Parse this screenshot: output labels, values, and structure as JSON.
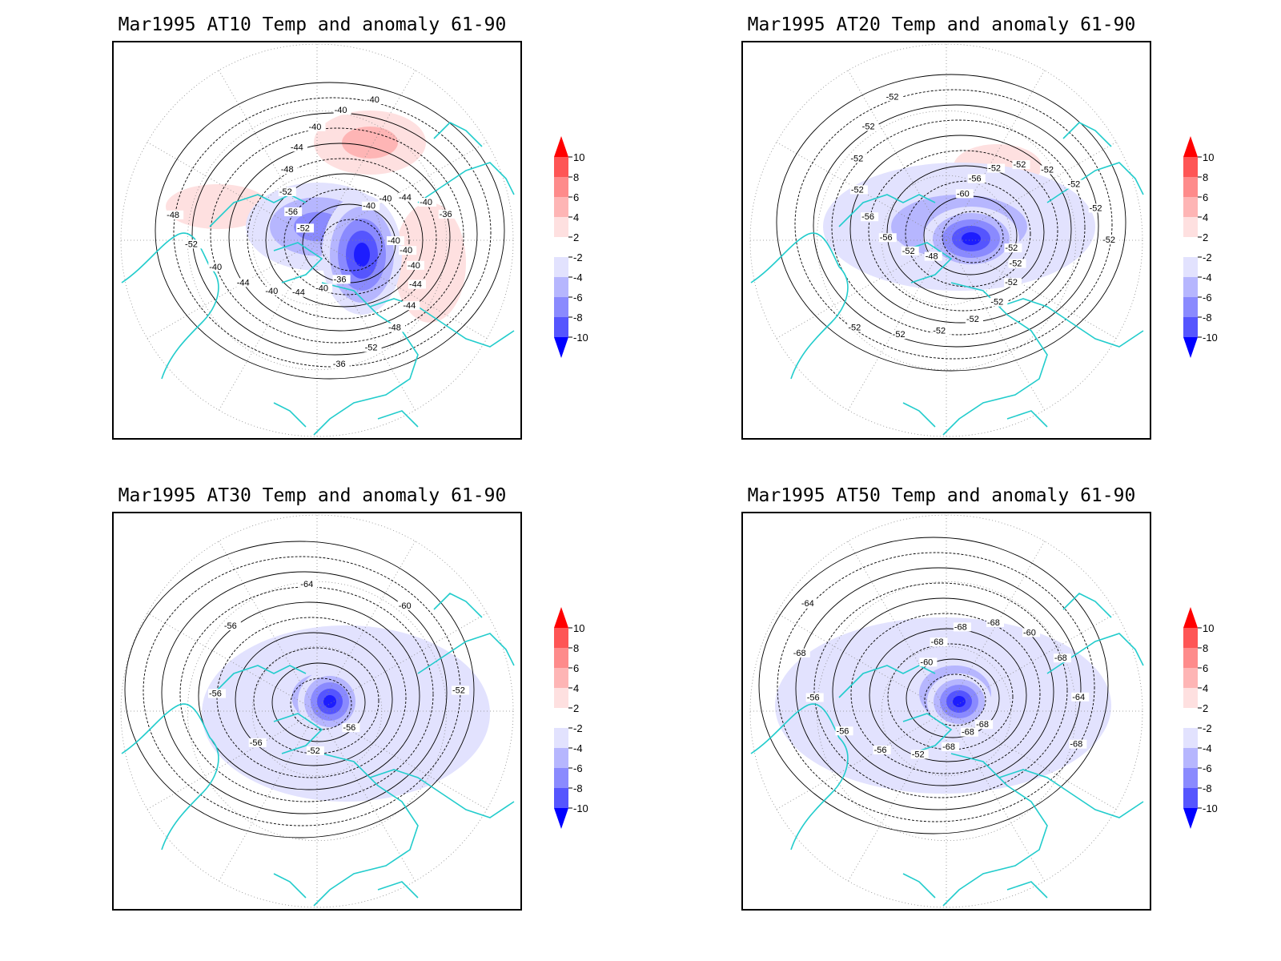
{
  "panels": [
    {
      "title": "Mar1995 AT10 Temp and anomaly 61-90",
      "contour_labels": [
        "-40",
        "-40",
        "-40",
        "-44",
        "-44",
        "-48",
        "-52",
        "-36",
        "-36",
        "-40",
        "-44",
        "-40",
        "-44",
        "-40",
        "-52",
        "-48",
        "-52",
        "-56",
        "-52",
        "-48",
        "-44",
        "-40",
        "-40",
        "-40",
        "-40",
        "-40",
        "-44",
        "-40",
        "-36"
      ],
      "anomaly_blobs": [
        {
          "sign": "warm",
          "level": 4
        },
        {
          "sign": "warm",
          "level": 2
        },
        {
          "sign": "warm",
          "level": 2
        },
        {
          "sign": "cold",
          "level": 6
        },
        {
          "sign": "cold",
          "level": 10
        }
      ]
    },
    {
      "title": "Mar1995 AT20 Temp and anomaly 61-90",
      "contour_labels": [
        "-52",
        "-52",
        "-52",
        "-52",
        "-52",
        "-52",
        "-52",
        "-52",
        "-48",
        "-52",
        "-56",
        "-56",
        "-52",
        "-52",
        "-52",
        "-52",
        "-60",
        "-56",
        "-52",
        "-52",
        "-52",
        "-52",
        "-52",
        "-52"
      ],
      "anomaly_blobs": [
        {
          "sign": "warm",
          "level": 2
        },
        {
          "sign": "cold",
          "level": 4
        },
        {
          "sign": "cold",
          "level": 10
        }
      ]
    },
    {
      "title": "Mar1995 AT30 Temp and anomaly 61-90",
      "contour_labels": [
        "-56",
        "-52",
        "-56",
        "-56",
        "-56",
        "-64",
        "-60",
        "-52"
      ],
      "anomaly_blobs": [
        {
          "sign": "cold",
          "level": 2
        },
        {
          "sign": "cold",
          "level": 4
        },
        {
          "sign": "cold",
          "level": 10
        }
      ]
    },
    {
      "title": "Mar1995 AT50 Temp and anomaly 61-90",
      "contour_labels": [
        "-68",
        "-68",
        "-52",
        "-56",
        "-56",
        "-56",
        "-68",
        "-64",
        "-60",
        "-68",
        "-68",
        "-68",
        "-60",
        "-68",
        "-64",
        "-68",
        "-68"
      ],
      "anomaly_blobs": [
        {
          "sign": "cold",
          "level": 2
        },
        {
          "sign": "cold",
          "level": 4
        },
        {
          "sign": "cold",
          "level": 10
        }
      ]
    }
  ],
  "colorbar": {
    "ticks": [
      "10",
      "8",
      "6",
      "4",
      "2",
      "-2",
      "-4",
      "-6",
      "-8",
      "-10"
    ],
    "colors": [
      "#fe1d1d",
      "#fe5555",
      "#fe8b8b",
      "#feb5b5",
      "#fee0e0",
      "#ffffff",
      "#e2e2fe",
      "#b6b6fe",
      "#8a8afe",
      "#5555fe",
      "#1d1dfe"
    ],
    "upper_arrow_color": "#ff0000",
    "lower_arrow_color": "#0000ff"
  },
  "colors": {
    "coastline": "#22cccc",
    "contour": "#000000",
    "grid": "#888888"
  }
}
